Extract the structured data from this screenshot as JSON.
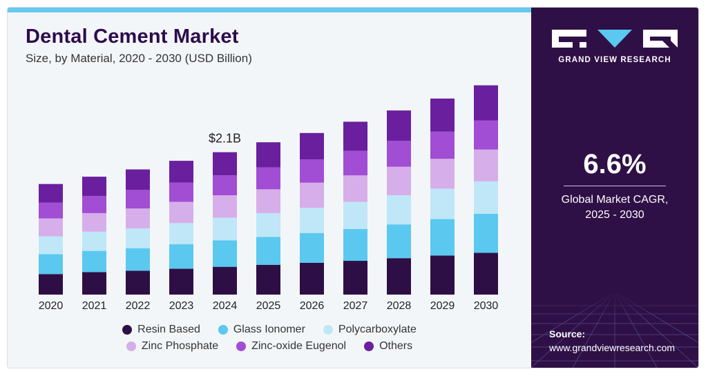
{
  "header": {
    "title": "Dental Cement Market",
    "subtitle": "Size, by Material, 2020 - 2030 (USD Billion)"
  },
  "annotation": {
    "text": "$2.1B",
    "year": "2024"
  },
  "sidebar": {
    "brand": "GRAND VIEW RESEARCH",
    "cagr_value": "6.6%",
    "cagr_label_line1": "Global Market CAGR,",
    "cagr_label_line2": "2025 - 2030",
    "source_title": "Source:",
    "source_url": "www.grandviewresearch.com"
  },
  "colors": {
    "Resin Based": "#2e0f45",
    "Glass Ionomer": "#5bc8f0",
    "Polycarboxylate": "#bfe7f7",
    "Zinc Phosphate": "#d6aee9",
    "Zinc-oxide Eugenol": "#a14dd4",
    "Others": "#6a1f9e"
  },
  "chart_data": {
    "type": "bar",
    "stacked": true,
    "categories": [
      "2020",
      "2021",
      "2022",
      "2023",
      "2024",
      "2025",
      "2026",
      "2027",
      "2028",
      "2029",
      "2030"
    ],
    "series": [
      {
        "name": "Resin Based",
        "values": [
          0.31,
          0.34,
          0.36,
          0.39,
          0.42,
          0.45,
          0.48,
          0.51,
          0.55,
          0.59,
          0.63
        ]
      },
      {
        "name": "Glass Ionomer",
        "values": [
          0.3,
          0.32,
          0.34,
          0.37,
          0.4,
          0.42,
          0.45,
          0.48,
          0.51,
          0.55,
          0.59
        ]
      },
      {
        "name": "Polycarboxylate",
        "values": [
          0.27,
          0.29,
          0.3,
          0.32,
          0.34,
          0.36,
          0.38,
          0.41,
          0.44,
          0.46,
          0.49
        ]
      },
      {
        "name": "Zinc Phosphate",
        "values": [
          0.27,
          0.28,
          0.3,
          0.32,
          0.34,
          0.36,
          0.38,
          0.4,
          0.43,
          0.45,
          0.48
        ]
      },
      {
        "name": "Zinc-oxide Eugenol",
        "values": [
          0.24,
          0.26,
          0.28,
          0.29,
          0.3,
          0.33,
          0.35,
          0.37,
          0.39,
          0.41,
          0.44
        ]
      },
      {
        "name": "Others",
        "values": [
          0.28,
          0.29,
          0.31,
          0.33,
          0.35,
          0.38,
          0.4,
          0.44,
          0.46,
          0.5,
          0.53
        ]
      }
    ],
    "ylim": [
      0,
      3.2
    ],
    "legend_position": "bottom",
    "grid": false
  }
}
